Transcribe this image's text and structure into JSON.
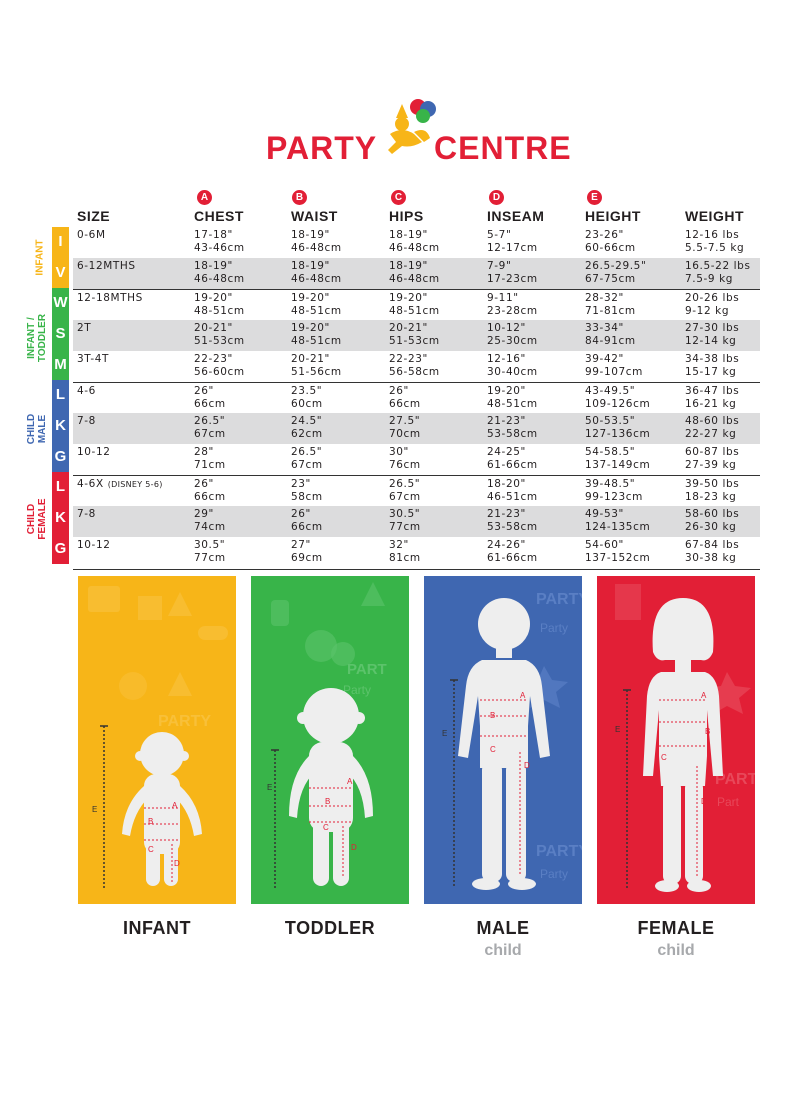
{
  "brand": {
    "left": "PARTY",
    "right": "CENTRE"
  },
  "columns": {
    "size": "SIZE",
    "chest": {
      "badge": "A",
      "label": "CHEST"
    },
    "waist": {
      "badge": "B",
      "label": "WAIST"
    },
    "hips": {
      "badge": "C",
      "label": "HIPS"
    },
    "inseam": {
      "badge": "D",
      "label": "INSEAM"
    },
    "height": {
      "badge": "E",
      "label": "HEIGHT"
    },
    "weight": {
      "label": "WEIGHT"
    }
  },
  "categories": {
    "infant": {
      "label": "INFANT",
      "color": "#f7b518",
      "letters": [
        "I",
        "V"
      ]
    },
    "toddler": {
      "label_1": "INFANT /",
      "label_2": "TODDLER",
      "color": "#38b449",
      "letters": [
        "W",
        "S",
        "M"
      ]
    },
    "male": {
      "label_1": "CHILD",
      "label_2": "MALE",
      "color": "#3f67b1",
      "letters": [
        "L",
        "K",
        "G"
      ]
    },
    "female": {
      "label_1": "CHILD",
      "label_2": "FEMALE",
      "color": "#e21f36",
      "letters": [
        "L",
        "K",
        "G"
      ]
    }
  },
  "rows": [
    {
      "size": "0-6M",
      "note": "",
      "chest": [
        "17-18\"",
        "43-46cm"
      ],
      "waist": [
        "18-19\"",
        "46-48cm"
      ],
      "hips": [
        "18-19\"",
        "46-48cm"
      ],
      "inseam": [
        "5-7\"",
        "12-17cm"
      ],
      "height": [
        "23-26\"",
        "60-66cm"
      ],
      "weight": [
        "12-16 lbs",
        "5.5-7.5 kg"
      ]
    },
    {
      "size": "6-12MTHS",
      "note": "",
      "chest": [
        "18-19\"",
        "46-48cm"
      ],
      "waist": [
        "18-19\"",
        "46-48cm"
      ],
      "hips": [
        "18-19\"",
        "46-48cm"
      ],
      "inseam": [
        "7-9\"",
        "17-23cm"
      ],
      "height": [
        "26.5-29.5\"",
        "67-75cm"
      ],
      "weight": [
        "16.5-22 lbs",
        "7.5-9 kg"
      ]
    },
    {
      "size": "12-18MTHS",
      "note": "",
      "chest": [
        "19-20\"",
        "48-51cm"
      ],
      "waist": [
        "19-20\"",
        "48-51cm"
      ],
      "hips": [
        "19-20\"",
        "48-51cm"
      ],
      "inseam": [
        "9-11\"",
        "23-28cm"
      ],
      "height": [
        "28-32\"",
        "71-81cm"
      ],
      "weight": [
        "20-26 lbs",
        "9-12 kg"
      ]
    },
    {
      "size": "2T",
      "note": "",
      "chest": [
        "20-21\"",
        "51-53cm"
      ],
      "waist": [
        "19-20\"",
        "48-51cm"
      ],
      "hips": [
        "20-21\"",
        "51-53cm"
      ],
      "inseam": [
        "10-12\"",
        "25-30cm"
      ],
      "height": [
        "33-34\"",
        "84-91cm"
      ],
      "weight": [
        "27-30 lbs",
        "12-14 kg"
      ]
    },
    {
      "size": "3T-4T",
      "note": "",
      "chest": [
        "22-23\"",
        "56-60cm"
      ],
      "waist": [
        "20-21\"",
        "51-56cm"
      ],
      "hips": [
        "22-23\"",
        "56-58cm"
      ],
      "inseam": [
        "12-16\"",
        "30-40cm"
      ],
      "height": [
        "39-42\"",
        "99-107cm"
      ],
      "weight": [
        "34-38 lbs",
        "15-17 kg"
      ]
    },
    {
      "size": "4-6",
      "note": "",
      "chest": [
        "26\"",
        "66cm"
      ],
      "waist": [
        "23.5\"",
        "60cm"
      ],
      "hips": [
        "26\"",
        "66cm"
      ],
      "inseam": [
        "19-20\"",
        "48-51cm"
      ],
      "height": [
        "43-49.5\"",
        "109-126cm"
      ],
      "weight": [
        "36-47 lbs",
        "16-21 kg"
      ]
    },
    {
      "size": "7-8",
      "note": "",
      "chest": [
        "26.5\"",
        "67cm"
      ],
      "waist": [
        "24.5\"",
        "62cm"
      ],
      "hips": [
        "27.5\"",
        "70cm"
      ],
      "inseam": [
        "21-23\"",
        "53-58cm"
      ],
      "height": [
        "50-53.5\"",
        "127-136cm"
      ],
      "weight": [
        "48-60 lbs",
        "22-27 kg"
      ]
    },
    {
      "size": "10-12",
      "note": "",
      "chest": [
        "28\"",
        "71cm"
      ],
      "waist": [
        "26.5\"",
        "67cm"
      ],
      "hips": [
        "30\"",
        "76cm"
      ],
      "inseam": [
        "24-25\"",
        "61-66cm"
      ],
      "height": [
        "54-58.5\"",
        "137-149cm"
      ],
      "weight": [
        "60-87 lbs",
        "27-39 kg"
      ]
    },
    {
      "size": "4-6X",
      "note": "(DISNEY 5-6)",
      "chest": [
        "26\"",
        "66cm"
      ],
      "waist": [
        "23\"",
        "58cm"
      ],
      "hips": [
        "26.5\"",
        "67cm"
      ],
      "inseam": [
        "18-20\"",
        "46-51cm"
      ],
      "height": [
        "39-48.5\"",
        "99-123cm"
      ],
      "weight": [
        "39-50 lbs",
        "18-23 kg"
      ]
    },
    {
      "size": "7-8",
      "note": "",
      "chest": [
        "29\"",
        "74cm"
      ],
      "waist": [
        "26\"",
        "66cm"
      ],
      "hips": [
        "30.5\"",
        "77cm"
      ],
      "inseam": [
        "21-23\"",
        "53-58cm"
      ],
      "height": [
        "49-53\"",
        "124-135cm"
      ],
      "weight": [
        "58-60 lbs",
        "26-30 kg"
      ]
    },
    {
      "size": "10-12",
      "note": "",
      "chest": [
        "30.5\"",
        "77cm"
      ],
      "waist": [
        "27\"",
        "69cm"
      ],
      "hips": [
        "32\"",
        "81cm"
      ],
      "inseam": [
        "24-26\"",
        "61-66cm"
      ],
      "height": [
        "54-60\"",
        "137-152cm"
      ],
      "weight": [
        "67-84 lbs",
        "30-38 kg"
      ]
    }
  ],
  "panels": [
    {
      "label": "INFANT",
      "sub": "",
      "color": "#f7b518",
      "marks": [
        "A",
        "B",
        "C",
        "D",
        "E"
      ]
    },
    {
      "label": "TODDLER",
      "sub": "",
      "color": "#38b449",
      "marks": [
        "A",
        "B",
        "C",
        "D",
        "E"
      ]
    },
    {
      "label": "MALE",
      "sub": "child",
      "color": "#3f67b1",
      "marks": [
        "A",
        "B",
        "C",
        "D",
        "E"
      ]
    },
    {
      "label": "FEMALE",
      "sub": "child",
      "color": "#e21f36",
      "marks": [
        "A",
        "B",
        "C",
        "D",
        "E"
      ]
    }
  ]
}
